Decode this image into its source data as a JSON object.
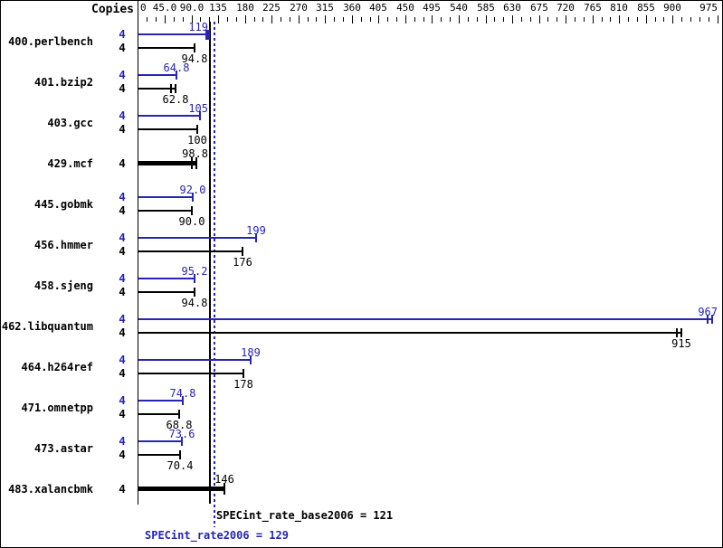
{
  "window": {
    "background": "#ffffff",
    "border_color": "#000000"
  },
  "chart_data": {
    "type": "bar",
    "orientation": "horizontal",
    "copies_label": "Copies",
    "axis": {
      "min": 0,
      "max": 975,
      "minor_tick_step": 15,
      "major_ticks": [
        {
          "value": 0,
          "label": "0"
        },
        {
          "value": 45,
          "label": "45.0"
        },
        {
          "value": 90,
          "label": "90.0"
        },
        {
          "value": 135,
          "label": "135"
        },
        {
          "value": 180,
          "label": "180"
        },
        {
          "value": 225,
          "label": "225"
        },
        {
          "value": 270,
          "label": "270"
        },
        {
          "value": 315,
          "label": "315"
        },
        {
          "value": 360,
          "label": "360"
        },
        {
          "value": 405,
          "label": "405"
        },
        {
          "value": 450,
          "label": "450"
        },
        {
          "value": 495,
          "label": "495"
        },
        {
          "value": 540,
          "label": "540"
        },
        {
          "value": 585,
          "label": "585"
        },
        {
          "value": 630,
          "label": "630"
        },
        {
          "value": 675,
          "label": "675"
        },
        {
          "value": 720,
          "label": "720"
        },
        {
          "value": 765,
          "label": "765"
        },
        {
          "value": 810,
          "label": "810"
        },
        {
          "value": 855,
          "label": "855"
        },
        {
          "value": 900,
          "label": "900"
        },
        {
          "value": 975,
          "label": "975"
        }
      ]
    },
    "series": [
      {
        "name": "peak",
        "color": "#2626b0"
      },
      {
        "name": "base",
        "color": "#000000"
      }
    ],
    "benchmarks": [
      {
        "name": "400.perlbench",
        "copies": "4",
        "bars": [
          {
            "series": "peak",
            "value": 119,
            "label": "119",
            "cap": "block"
          },
          {
            "series": "base",
            "value": 94.8,
            "label": "94.8",
            "cap": "single"
          }
        ]
      },
      {
        "name": "401.bzip2",
        "copies": "4",
        "bars": [
          {
            "series": "peak",
            "value": 64.8,
            "label": "64.8",
            "cap": "single"
          },
          {
            "series": "base",
            "value": 62.8,
            "label": "62.8",
            "cap": "double"
          }
        ]
      },
      {
        "name": "403.gcc",
        "copies": "4",
        "bars": [
          {
            "series": "peak",
            "value": 105,
            "label": "105",
            "cap": "single"
          },
          {
            "series": "base",
            "value": 100,
            "label": "100",
            "cap": "single"
          }
        ]
      },
      {
        "name": "429.mcf",
        "copies": "4",
        "bars": [
          {
            "series": "base",
            "value": 98.8,
            "label": "98.8",
            "cap": "double",
            "thick": true
          }
        ]
      },
      {
        "name": "445.gobmk",
        "copies": "4",
        "bars": [
          {
            "series": "peak",
            "value": 92.0,
            "label": "92.0",
            "cap": "single"
          },
          {
            "series": "base",
            "value": 90.0,
            "label": "90.0",
            "cap": "single"
          }
        ]
      },
      {
        "name": "456.hmmer",
        "copies": "4",
        "bars": [
          {
            "series": "peak",
            "value": 199,
            "label": "199",
            "cap": "single"
          },
          {
            "series": "base",
            "value": 176,
            "label": "176",
            "cap": "single"
          }
        ]
      },
      {
        "name": "458.sjeng",
        "copies": "4",
        "bars": [
          {
            "series": "peak",
            "value": 95.2,
            "label": "95.2",
            "cap": "single"
          },
          {
            "series": "base",
            "value": 94.8,
            "label": "94.8",
            "cap": "single"
          }
        ]
      },
      {
        "name": "462.libquantum",
        "copies": "4",
        "bars": [
          {
            "series": "peak",
            "value": 967,
            "label": "967",
            "cap": "double"
          },
          {
            "series": "base",
            "value": 915,
            "label": "915",
            "cap": "double"
          }
        ]
      },
      {
        "name": "464.h264ref",
        "copies": "4",
        "bars": [
          {
            "series": "peak",
            "value": 189,
            "label": "189",
            "cap": "single"
          },
          {
            "series": "base",
            "value": 178,
            "label": "178",
            "cap": "single"
          }
        ]
      },
      {
        "name": "471.omnetpp",
        "copies": "4",
        "bars": [
          {
            "series": "peak",
            "value": 74.8,
            "label": "74.8",
            "cap": "single"
          },
          {
            "series": "base",
            "value": 68.8,
            "label": "68.8",
            "cap": "single"
          }
        ]
      },
      {
        "name": "473.astar",
        "copies": "4",
        "bars": [
          {
            "series": "peak",
            "value": 73.6,
            "label": "73.6",
            "cap": "single"
          },
          {
            "series": "base",
            "value": 70.4,
            "label": "70.4",
            "cap": "single"
          }
        ]
      },
      {
        "name": "483.xalancbmk",
        "copies": "4",
        "bars": [
          {
            "series": "base",
            "value": 146,
            "label": "146",
            "cap": "single",
            "thick": true
          }
        ]
      }
    ],
    "reference_lines": [
      {
        "name": "SPECint_rate_base2006",
        "value": 121,
        "label": "SPECint_rate_base2006 = 121",
        "style": "solid",
        "color": "#000000"
      },
      {
        "name": "SPECint_rate2006",
        "value": 129,
        "label": "SPECint_rate2006 = 129",
        "style": "dotted",
        "color": "#2626b0"
      }
    ]
  }
}
